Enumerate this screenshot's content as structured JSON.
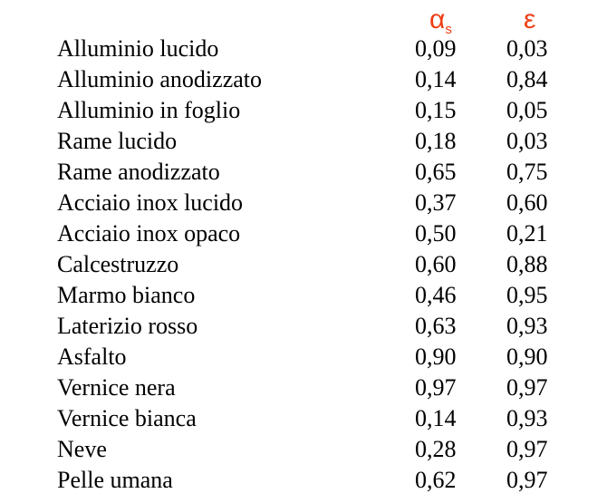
{
  "header": {
    "alpha_symbol": "α",
    "alpha_subscript": "s",
    "epsilon_symbol": "ε",
    "accent_color": "#ef3d14"
  },
  "rows": [
    {
      "material": "Alluminio lucido",
      "alpha_s": "0,09",
      "epsilon": "0,03"
    },
    {
      "material": "Alluminio anodizzato",
      "alpha_s": "0,14",
      "epsilon": "0,84"
    },
    {
      "material": "Alluminio in foglio",
      "alpha_s": "0,15",
      "epsilon": "0,05"
    },
    {
      "material": "Rame lucido",
      "alpha_s": "0,18",
      "epsilon": "0,03"
    },
    {
      "material": "Rame anodizzato",
      "alpha_s": "0,65",
      "epsilon": "0,75"
    },
    {
      "material": "Acciaio inox lucido",
      "alpha_s": "0,37",
      "epsilon": "0,60"
    },
    {
      "material": "Acciaio inox opaco",
      "alpha_s": "0,50",
      "epsilon": "0,21"
    },
    {
      "material": "Calcestruzzo",
      "alpha_s": "0,60",
      "epsilon": "0,88"
    },
    {
      "material": "Marmo bianco",
      "alpha_s": "0,46",
      "epsilon": "0,95"
    },
    {
      "material": "Laterizio rosso",
      "alpha_s": "0,63",
      "epsilon": "0,93"
    },
    {
      "material": "Asfalto",
      "alpha_s": "0,90",
      "epsilon": "0,90"
    },
    {
      "material": "Vernice nera",
      "alpha_s": "0,97",
      "epsilon": "0,97"
    },
    {
      "material": "Vernice bianca",
      "alpha_s": "0,14",
      "epsilon": "0,93"
    },
    {
      "material": "Neve",
      "alpha_s": "0,28",
      "epsilon": "0,97"
    },
    {
      "material": "Pelle umana",
      "alpha_s": "0,62",
      "epsilon": "0,97"
    }
  ]
}
